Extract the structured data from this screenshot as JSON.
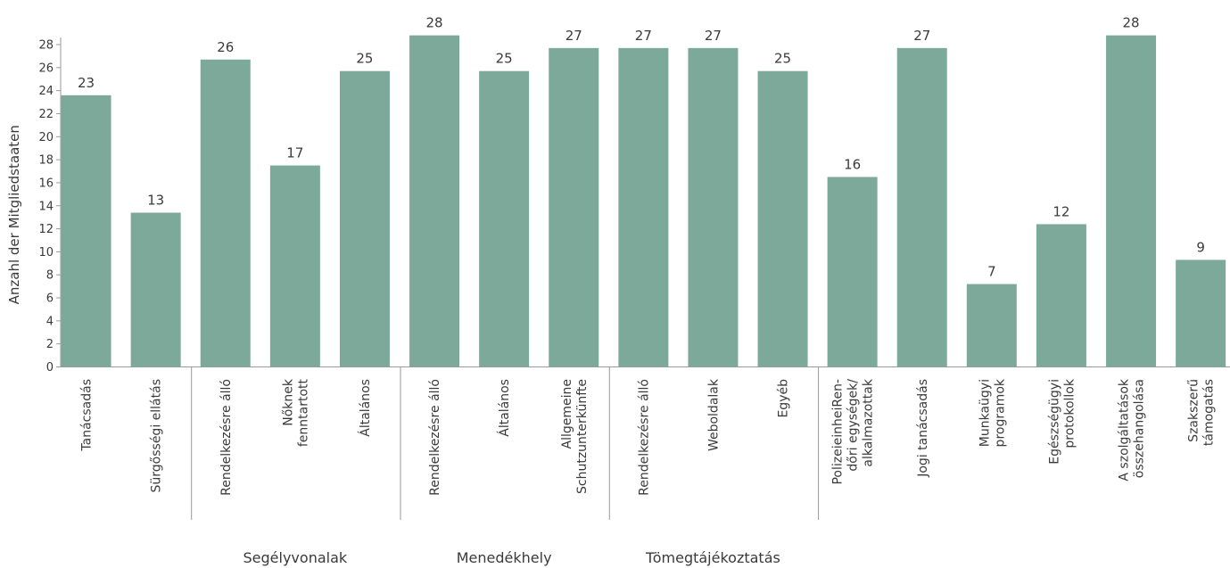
{
  "chart_data": {
    "type": "bar",
    "ylabel": "Anzahl der Mitgliedstaaten",
    "xlabel": "",
    "ylim": [
      0,
      28
    ],
    "yticks": [
      0,
      2,
      4,
      6,
      8,
      10,
      12,
      14,
      16,
      18,
      20,
      22,
      24,
      26,
      28
    ],
    "grid": false,
    "bar_color": "#7da99b",
    "categories": [
      [
        "Tanácsadás"
      ],
      [
        "Sürgősségi ellátás"
      ],
      [
        "Rendelkezésre álló"
      ],
      [
        "Nőknek",
        "fenntartott"
      ],
      [
        "Általános"
      ],
      [
        "Rendelkezésre álló"
      ],
      [
        "Általános"
      ],
      [
        "Allgemeine",
        "Schutzunterkünfte"
      ],
      [
        "Rendelkezésre álló"
      ],
      [
        "Weboldalak"
      ],
      [
        "Egyéb"
      ],
      [
        "PolizeieinheiRen-",
        "dőri egységek/",
        "alkalmazottak"
      ],
      [
        "Jogi tanácsadás"
      ],
      [
        "Munkaügyi",
        "programok"
      ],
      [
        "Egészségügyi",
        "protokollok"
      ],
      [
        "A szolgáltatások",
        "összehangolása"
      ],
      [
        "Szakszerű",
        "támogatás"
      ]
    ],
    "values": [
      23,
      13,
      26,
      17,
      25,
      28,
      25,
      27,
      27,
      27,
      25,
      16,
      27,
      7,
      12,
      28,
      9
    ],
    "plotted_values": [
      23.6,
      13.4,
      26.7,
      17.5,
      25.7,
      28.8,
      25.7,
      27.7,
      27.7,
      27.7,
      25.7,
      16.5,
      27.7,
      7.2,
      12.4,
      28.8,
      9.3
    ],
    "groups": [
      {
        "label": "Segélyvonalak",
        "start": 2,
        "end": 4
      },
      {
        "label": "Menedékhely",
        "start": 5,
        "end": 7
      },
      {
        "label": "Tömegtájékoztatás",
        "start": 8,
        "end": 10
      }
    ],
    "separators_after": [
      1,
      4,
      7,
      10
    ]
  }
}
